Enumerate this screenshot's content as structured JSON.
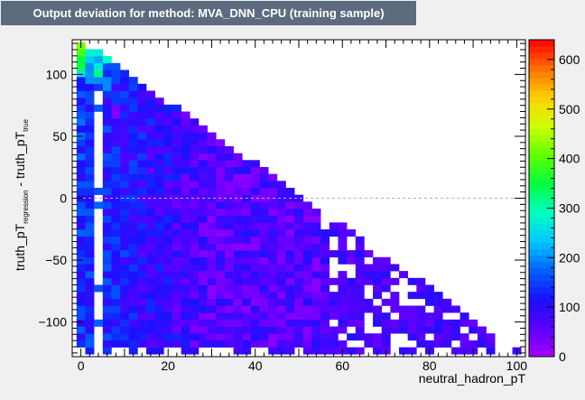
{
  "chart_data": {
    "type": "heatmap",
    "title": "Output deviation for method: MVA_DNN_CPU (training sample)",
    "xlabel": "neutral_hadron_pT",
    "ylabel": {
      "main": "truth_pT",
      "sub1": "regression",
      "mid": " - truth_pT",
      "sub2": "true"
    },
    "xlim": [
      -2,
      102
    ],
    "ylim": [
      -128,
      128
    ],
    "x_ticks": [
      0,
      20,
      40,
      60,
      80,
      100
    ],
    "x_tick_labels": [
      "0",
      "20",
      "40",
      "60",
      "80",
      "100"
    ],
    "y_ticks": [
      -100,
      -50,
      0,
      50,
      100
    ],
    "y_tick_labels": [
      "−100",
      "−50",
      "0",
      "50",
      "100"
    ],
    "zlim": [
      0,
      640
    ],
    "z_ticks": [
      0,
      100,
      200,
      300,
      400,
      500,
      600
    ],
    "z_tick_labels": [
      "0",
      "100",
      "200",
      "300",
      "400",
      "500",
      "600"
    ],
    "zero_line": {
      "y": 0,
      "style": "dashed",
      "color": "#b0b0b0"
    },
    "colormap": [
      "#a500ff",
      "#5a00ff",
      "#1a10ff",
      "#0060ff",
      "#00c8ff",
      "#00ffc0",
      "#00ff40",
      "#60ff00",
      "#d0ff00",
      "#ffd000",
      "#ff7000",
      "#ff0000"
    ],
    "binning": {
      "x_start": -1,
      "x_width": 2,
      "nx": 51,
      "y_start": -126,
      "y_width": 5.6,
      "ny": 45
    },
    "value_model": "Bin counts estimated from the colour of each cell: counts fill the triangle y <= 125 - 2.5x; near-zero-pT bins along the top edge peak near 600; the interior is mostly 20-150 with scattered empty bins."
  },
  "title_box": {
    "text": "Output deviation for method: MVA_DNN_CPU (training sample)",
    "bg": "#5c6b80",
    "fg": "#ffffff"
  }
}
